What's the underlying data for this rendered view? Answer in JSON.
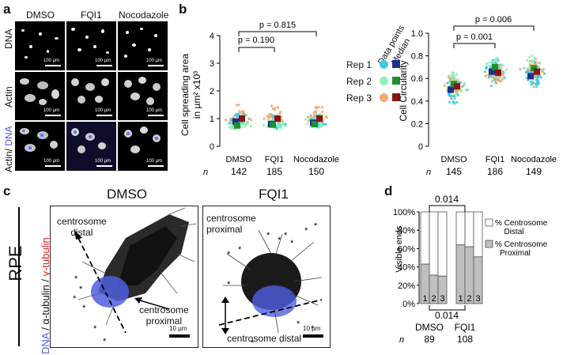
{
  "panel_labels": {
    "a": "a",
    "b": "b",
    "c": "c",
    "d": "d"
  },
  "panel_a": {
    "columns": [
      "DMSO",
      "FQI1",
      "Nocodazole"
    ],
    "rows": [
      "DNA",
      "Actin",
      "Actin/ DNA"
    ],
    "row3_actin": "Actin/",
    "row3_dna": " DNA",
    "scale": "100 µm"
  },
  "chart_data": [
    {
      "type": "scatter",
      "title": "",
      "ylabel": "Cell spreading area in µm² x10³",
      "ylabel_line1": "Cell spreading area",
      "ylabel_line2": "in µm² x10³",
      "ylim": [
        0,
        4
      ],
      "yticks": [
        "0",
        "1",
        "2",
        "3",
        "4"
      ],
      "categories": [
        "DMSO",
        "FQI1",
        "Nocodazole"
      ],
      "n_label": "n",
      "n": [
        "142",
        "185",
        "150"
      ],
      "p_values": [
        "p = 0.190",
        "p = 0.815"
      ],
      "series": [
        {
          "name": "Rep 1",
          "median": [
            0.9,
            0.8,
            0.85
          ],
          "color_points": "#3fc8e8",
          "color_median": "#1f2e8a"
        },
        {
          "name": "Rep 2",
          "median": [
            0.75,
            0.78,
            0.8
          ],
          "color_points": "#8ef0b8",
          "color_median": "#1f8f2f"
        },
        {
          "name": "Rep 3",
          "median": [
            1.0,
            1.0,
            1.0
          ],
          "color_points": "#f2ac6a",
          "color_median": "#8a1414"
        }
      ]
    },
    {
      "type": "scatter",
      "title": "",
      "ylabel": "Cell Circularity",
      "ylim": [
        0,
        1.0
      ],
      "yticks": [
        "0",
        "0.2",
        "0.4",
        "0.6",
        "0.8",
        "1.0"
      ],
      "categories": [
        "DMSO",
        "FQI1",
        "Nocodazole"
      ],
      "n_label": "n",
      "n": [
        "145",
        "186",
        "149"
      ],
      "p_values": [
        "p = 0.001",
        "p = 0.006"
      ],
      "series": [
        {
          "name": "Rep 1",
          "median": [
            0.5,
            0.66,
            0.62
          ]
        },
        {
          "name": "Rep 2",
          "median": [
            0.55,
            0.7,
            0.69
          ]
        },
        {
          "name": "Rep 3",
          "median": [
            0.53,
            0.65,
            0.66
          ]
        }
      ]
    },
    {
      "type": "bar",
      "title": "",
      "ylabel": "Visible ends",
      "yticks": [
        "0%",
        "20%",
        "40%",
        "60%",
        "80%",
        "100%"
      ],
      "ylim": [
        0,
        100
      ],
      "groups": [
        "DMSO",
        "FQI1"
      ],
      "bar_labels": [
        "1",
        "2",
        "3",
        "1",
        "2",
        "3"
      ],
      "proximal": [
        43,
        31,
        30,
        64,
        62,
        51
      ],
      "distal": [
        57,
        69,
        70,
        36,
        38,
        49
      ],
      "p_value_top": "0.014",
      "p_value_bottom": "0.014",
      "n_label": "n",
      "n": [
        "89",
        "108"
      ],
      "legend": [
        "% Centrosome Distal",
        "% Centrosome Proximal"
      ],
      "legend_distal_1": "% Centrosome",
      "legend_distal_2": "Distal",
      "legend_proximal_1": "% Centrosome",
      "legend_proximal_2": "Proximal"
    }
  ],
  "legend_b": {
    "header_1": "Data points",
    "header_2": "Median",
    "reps": [
      "Rep 1",
      "Rep 2",
      "Rep 3"
    ]
  },
  "panel_c": {
    "side_label": "RPE",
    "stain_dna": "DNA",
    "stain_sep1": " / ",
    "stain_tub": "α-tubulin",
    "stain_sep2": " / ",
    "stain_gtub": "γ-tubulin",
    "left_title": "DMSO",
    "right_title": "FQI1",
    "left_distal_1": "centrosome",
    "left_distal_2": "distal",
    "left_proximal_1": "centrosome",
    "left_proximal_2": "proximal",
    "right_proximal_1": "centrosome",
    "right_proximal_2": "proximal",
    "right_distal": "centrosome distal",
    "scale": "10 µm"
  }
}
